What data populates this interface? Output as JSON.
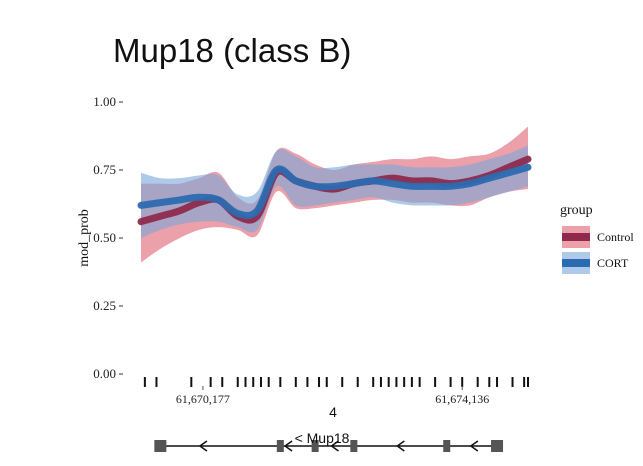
{
  "chart_data": {
    "type": "line",
    "title": "Mup18 (class B)",
    "ylabel": "mod_prob",
    "xlabel": "",
    "ylim": [
      0,
      1
    ],
    "yticks": [
      "0.00",
      "0.25",
      "0.50",
      "0.75",
      "1.00"
    ],
    "xlim": [
      0,
      1
    ],
    "legend": {
      "title": "group",
      "placement": "right",
      "entries": [
        "Control",
        "CORT"
      ]
    },
    "series": [
      {
        "name": "Control",
        "color": "#8e2a4c",
        "band_color": "#e06070",
        "x": [
          0.0,
          0.05,
          0.1,
          0.15,
          0.2,
          0.25,
          0.3,
          0.35,
          0.4,
          0.45,
          0.5,
          0.55,
          0.6,
          0.65,
          0.7,
          0.75,
          0.8,
          0.85,
          0.9,
          0.95,
          1.0
        ],
        "y": [
          0.56,
          0.58,
          0.6,
          0.63,
          0.64,
          0.58,
          0.58,
          0.74,
          0.71,
          0.69,
          0.68,
          0.7,
          0.71,
          0.72,
          0.71,
          0.71,
          0.7,
          0.71,
          0.73,
          0.76,
          0.79
        ],
        "lower": [
          0.41,
          0.46,
          0.5,
          0.53,
          0.54,
          0.53,
          0.51,
          0.67,
          0.61,
          0.61,
          0.62,
          0.63,
          0.64,
          0.64,
          0.63,
          0.63,
          0.62,
          0.62,
          0.65,
          0.67,
          0.68
        ],
        "upper": [
          0.7,
          0.7,
          0.7,
          0.72,
          0.74,
          0.65,
          0.64,
          0.82,
          0.81,
          0.77,
          0.75,
          0.77,
          0.78,
          0.79,
          0.79,
          0.8,
          0.79,
          0.8,
          0.81,
          0.85,
          0.91
        ]
      },
      {
        "name": "CORT",
        "color": "#2b6cb0",
        "band_color": "#7aa7d8",
        "x": [
          0.0,
          0.05,
          0.1,
          0.15,
          0.2,
          0.25,
          0.3,
          0.35,
          0.4,
          0.45,
          0.5,
          0.55,
          0.6,
          0.65,
          0.7,
          0.75,
          0.8,
          0.85,
          0.9,
          0.95,
          1.0
        ],
        "y": [
          0.62,
          0.63,
          0.64,
          0.65,
          0.64,
          0.59,
          0.6,
          0.75,
          0.71,
          0.69,
          0.69,
          0.7,
          0.71,
          0.7,
          0.69,
          0.69,
          0.69,
          0.7,
          0.72,
          0.74,
          0.76
        ],
        "lower": [
          0.5,
          0.53,
          0.55,
          0.56,
          0.56,
          0.54,
          0.53,
          0.69,
          0.62,
          0.62,
          0.63,
          0.64,
          0.65,
          0.63,
          0.62,
          0.62,
          0.62,
          0.63,
          0.65,
          0.67,
          0.69
        ],
        "upper": [
          0.74,
          0.72,
          0.72,
          0.73,
          0.73,
          0.66,
          0.67,
          0.82,
          0.8,
          0.76,
          0.76,
          0.77,
          0.77,
          0.77,
          0.76,
          0.76,
          0.76,
          0.77,
          0.79,
          0.81,
          0.84
        ]
      }
    ],
    "cpg_sites": [
      0.01,
      0.04,
      0.13,
      0.18,
      0.21,
      0.25,
      0.27,
      0.29,
      0.31,
      0.33,
      0.36,
      0.4,
      0.43,
      0.46,
      0.48,
      0.52,
      0.56,
      0.6,
      0.62,
      0.64,
      0.66,
      0.68,
      0.7,
      0.72,
      0.76,
      0.8,
      0.83,
      0.87,
      0.9,
      0.92,
      0.96,
      0.99,
      1.0
    ],
    "position_labels": [
      {
        "x": 0.16,
        "text": "61,670,177"
      },
      {
        "x": 0.83,
        "text": "61,674,136"
      }
    ],
    "chromosome": "4",
    "gene": {
      "name": "< Mup18",
      "exons": [
        0.05,
        0.36,
        0.45,
        0.55,
        0.79,
        0.92
      ],
      "introns_arrows": [
        0.16,
        0.38,
        0.5,
        0.67,
        0.86
      ]
    }
  }
}
